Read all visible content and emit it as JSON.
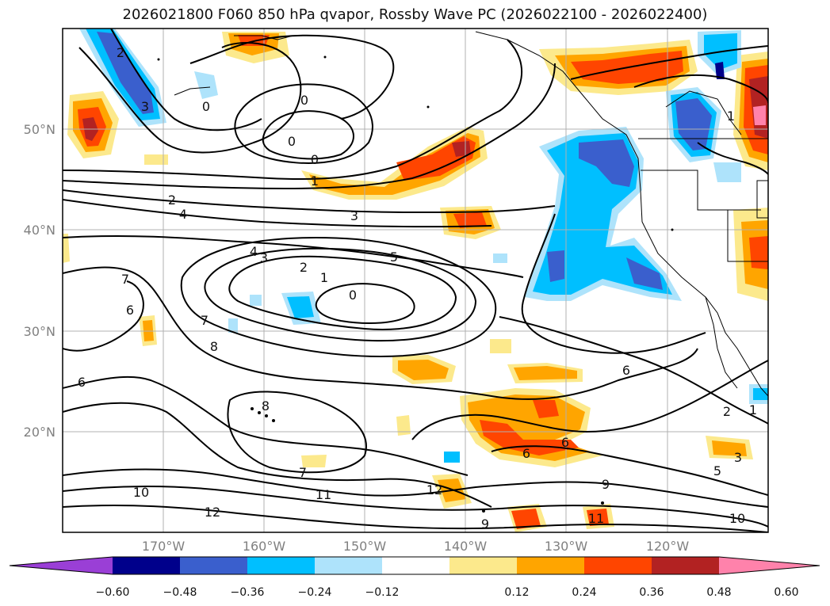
{
  "title": "2026021800 F060 850 hPa qvapor, Rossby Wave PC (2026022100 - 2026022400)",
  "map": {
    "lon_ticks": [
      "170°W",
      "160°W",
      "150°W",
      "140°W",
      "130°W",
      "120°W"
    ],
    "lat_ticks": [
      "50°N",
      "40°N",
      "30°N",
      "20°N"
    ],
    "contour_labels": [
      "2",
      "3",
      "0",
      "0",
      "0",
      "0",
      "1",
      "2",
      "4",
      "3",
      "4",
      "3",
      "2",
      "1",
      "5",
      "0",
      "7",
      "6",
      "7",
      "8",
      "6",
      "8",
      "7",
      "10",
      "12",
      "11",
      "12",
      "9",
      "9",
      "11",
      "10",
      "6",
      "6",
      "6",
      "2",
      "3",
      "5",
      "1",
      "1"
    ]
  },
  "colorbar": {
    "colors": [
      "#9a3fd6",
      "#00008b",
      "#3a5fcd",
      "#00bfff",
      "#aee3fb",
      "#ffffff",
      "#fce98c",
      "#ffa500",
      "#ff4500",
      "#b22222",
      "#ff82ab"
    ],
    "ticks": [
      "−0.60",
      "−0.48",
      "−0.36",
      "−0.24",
      "−0.12",
      "0.12",
      "0.24",
      "0.36",
      "0.48",
      "0.60"
    ]
  }
}
